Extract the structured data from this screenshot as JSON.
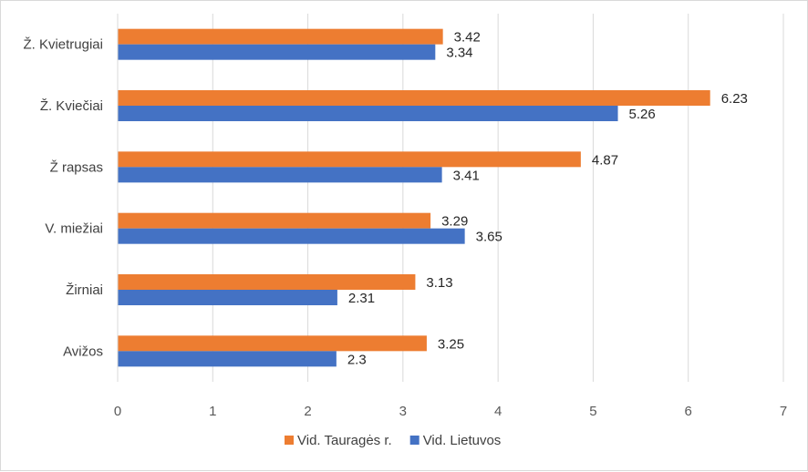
{
  "chart_data": {
    "type": "bar",
    "orientation": "horizontal",
    "categories": [
      "Ž. Kvietrugiai",
      "Ž. Kviečiai",
      "Ž rapsas",
      "V. miežiai",
      "Žirniai",
      "Avižos"
    ],
    "series": [
      {
        "name": "Vid. Tauragės r.",
        "color": "#ED7D31",
        "values": [
          3.42,
          6.23,
          4.87,
          3.29,
          3.13,
          3.25
        ],
        "labels": [
          "3.42",
          "6.23",
          "4.87",
          "3.29",
          "3.13",
          "3.25"
        ]
      },
      {
        "name": "Vid. Lietuvos",
        "color": "#4472C4",
        "values": [
          3.34,
          5.26,
          3.41,
          3.65,
          2.31,
          2.3
        ],
        "labels": [
          "3.34",
          "5.26",
          "3.41",
          "3.65",
          "2.31",
          "2.3"
        ]
      }
    ],
    "xlim": [
      0,
      7
    ],
    "ticks": [
      "0",
      "1",
      "2",
      "3",
      "4",
      "5",
      "6",
      "7"
    ],
    "grid": true,
    "legend_position": "bottom",
    "gridline_color": "#d9d9d9"
  }
}
